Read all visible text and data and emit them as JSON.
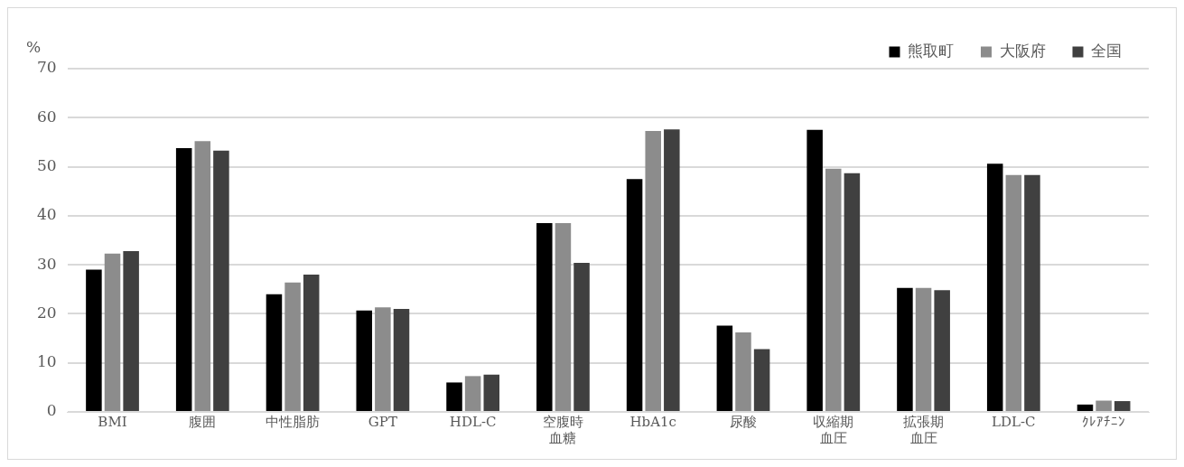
{
  "chart_data": {
    "type": "bar",
    "ylabel": "%",
    "categories": [
      "BMI",
      "腹囲",
      "中性脂肪",
      "GPT",
      "HDL-C",
      "空腹時血糖",
      "HbA1c",
      "尿酸",
      "収縮期血圧",
      "拡張期血圧",
      "LDL-C",
      "ｸﾚｱﾁﾆﾝ"
    ],
    "series": [
      {
        "name": "熊取町",
        "color": "#000000",
        "values": [
          29,
          53.8,
          24,
          20.7,
          6,
          38.5,
          47.5,
          17.6,
          57.5,
          25.3,
          50.6,
          1.5
        ]
      },
      {
        "name": "大阪府",
        "color": "#8c8c8c",
        "values": [
          32.3,
          55.2,
          26.4,
          21.3,
          7.3,
          38.5,
          57.3,
          16.2,
          49.6,
          25.3,
          48.3,
          2.3
        ]
      },
      {
        "name": "全国",
        "color": "#404040",
        "values": [
          32.8,
          53.3,
          28,
          21,
          7.6,
          30.4,
          57.6,
          12.8,
          48.7,
          24.8,
          48.3,
          2.2
        ]
      }
    ],
    "ylim": [
      0,
      70
    ],
    "yticks": [
      0,
      10,
      20,
      30,
      40,
      50,
      60,
      70
    ],
    "grid": "y",
    "legend": "top right"
  }
}
